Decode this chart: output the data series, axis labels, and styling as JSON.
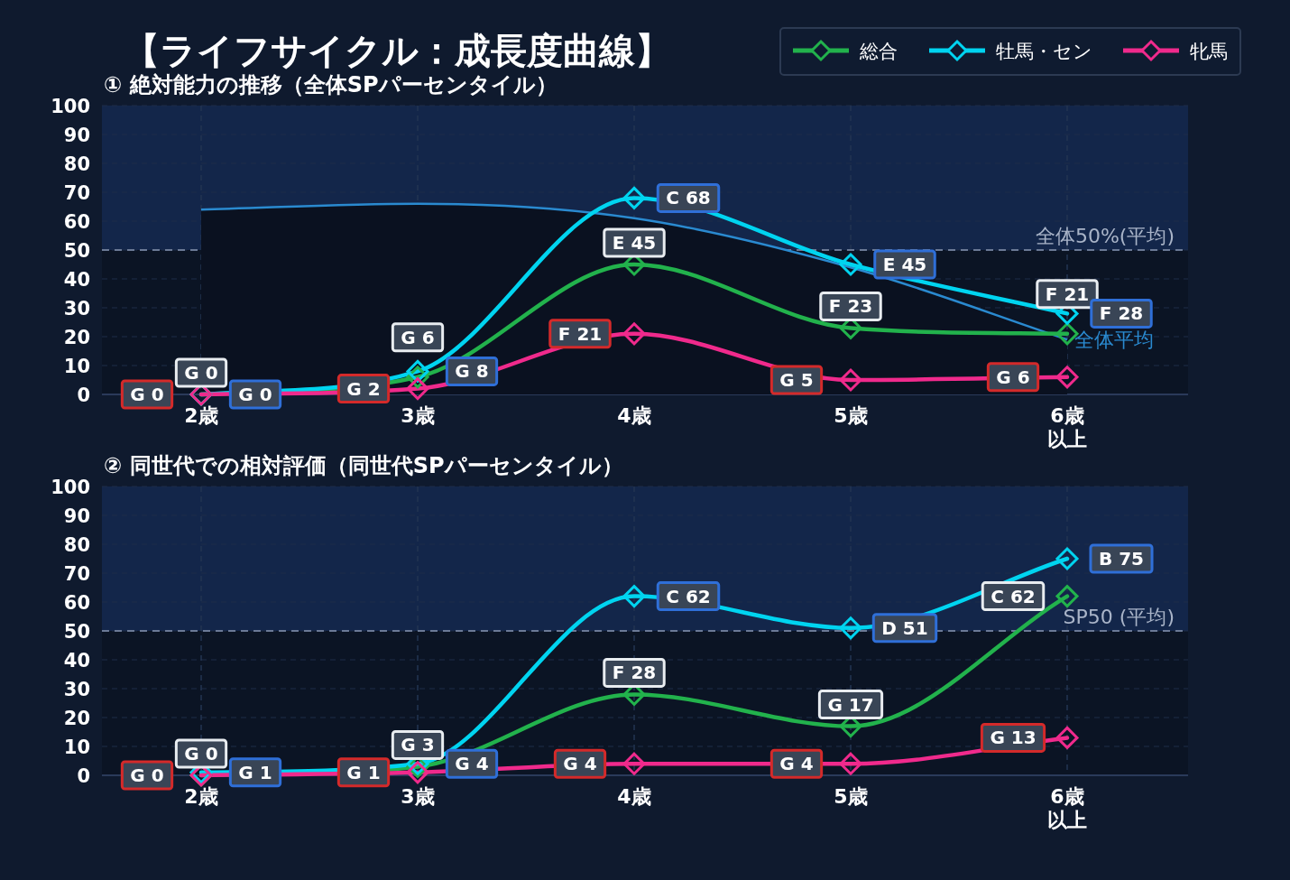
{
  "chart_data": [
    {
      "type": "line",
      "title": "【ライフサイクル：成長度曲線】",
      "subtitle": "① 絶対能力の推移（全体SPパーセンタイル）",
      "categories": [
        "2歳",
        "3歳",
        "4歳",
        "5歳",
        "6歳以上"
      ],
      "ylim": [
        0,
        100
      ],
      "yticks": [
        0,
        10,
        20,
        30,
        40,
        50,
        60,
        70,
        80,
        90,
        100
      ],
      "grid": true,
      "legend": "top right",
      "marker": "diamond",
      "series": [
        {
          "name": "全体平均",
          "type": "area",
          "marker": "none",
          "color": "#2a8ad0",
          "values": [
            64,
            66,
            61,
            44,
            19
          ]
        },
        {
          "name": "総合",
          "color": "#22b24c",
          "values": [
            0,
            6,
            45,
            23,
            21
          ],
          "value_labels": [
            "G 0",
            "G 6",
            "E 45",
            "F 23",
            "F 21"
          ]
        },
        {
          "name": "牡馬・セン",
          "color": "#00d4f0",
          "values": [
            0,
            8,
            68,
            45,
            28
          ],
          "value_labels": [
            "G 0",
            "G 8",
            "C 68",
            "E 45",
            "F 28"
          ]
        },
        {
          "name": "牝馬",
          "color": "#f02a8c",
          "values": [
            0,
            2,
            21,
            5,
            6
          ],
          "value_labels": [
            "G 0",
            "G 2",
            "F 21",
            "G 5",
            "G 6"
          ]
        }
      ],
      "ref_lines": [
        {
          "axis": "y",
          "value": 50,
          "label": "全体50%(平均)",
          "color": "#6b7a96",
          "line_style": "dashed"
        }
      ],
      "bands": [
        {
          "axis": "y",
          "from": 50,
          "to": 100,
          "color": "#13264a"
        }
      ]
    },
    {
      "type": "line",
      "subtitle": "② 同世代での相対評価（同世代SPパーセンタイル）",
      "categories": [
        "2歳",
        "3歳",
        "4歳",
        "5歳",
        "6歳以上"
      ],
      "ylim": [
        0,
        100
      ],
      "yticks": [
        0,
        10,
        20,
        30,
        40,
        50,
        60,
        70,
        80,
        90,
        100
      ],
      "grid": true,
      "marker": "diamond",
      "series": [
        {
          "color": "#22b24c",
          "values": [
            0,
            3,
            28,
            17,
            62
          ],
          "value_labels": [
            "G 0",
            "G 3",
            "F 28",
            "G 17",
            "C 62"
          ]
        },
        {
          "color": "#00d4f0",
          "values": [
            1,
            4,
            62,
            51,
            75
          ],
          "value_labels": [
            "G 1",
            "G 4",
            "C 62",
            "D 51",
            "B 75"
          ]
        },
        {
          "color": "#f02a8c",
          "values": [
            0,
            1,
            4,
            4,
            13
          ],
          "value_labels": [
            "G 0",
            "G 1",
            "G 4",
            "G 4",
            "G 13"
          ]
        }
      ],
      "ref_lines": [
        {
          "axis": "y",
          "value": 50,
          "label": "SP50 (平均)",
          "color": "#6b7a96",
          "line_style": "dashed"
        }
      ],
      "bands": [
        {
          "axis": "y",
          "from": 50,
          "to": 100,
          "color": "#13264a"
        }
      ]
    }
  ]
}
